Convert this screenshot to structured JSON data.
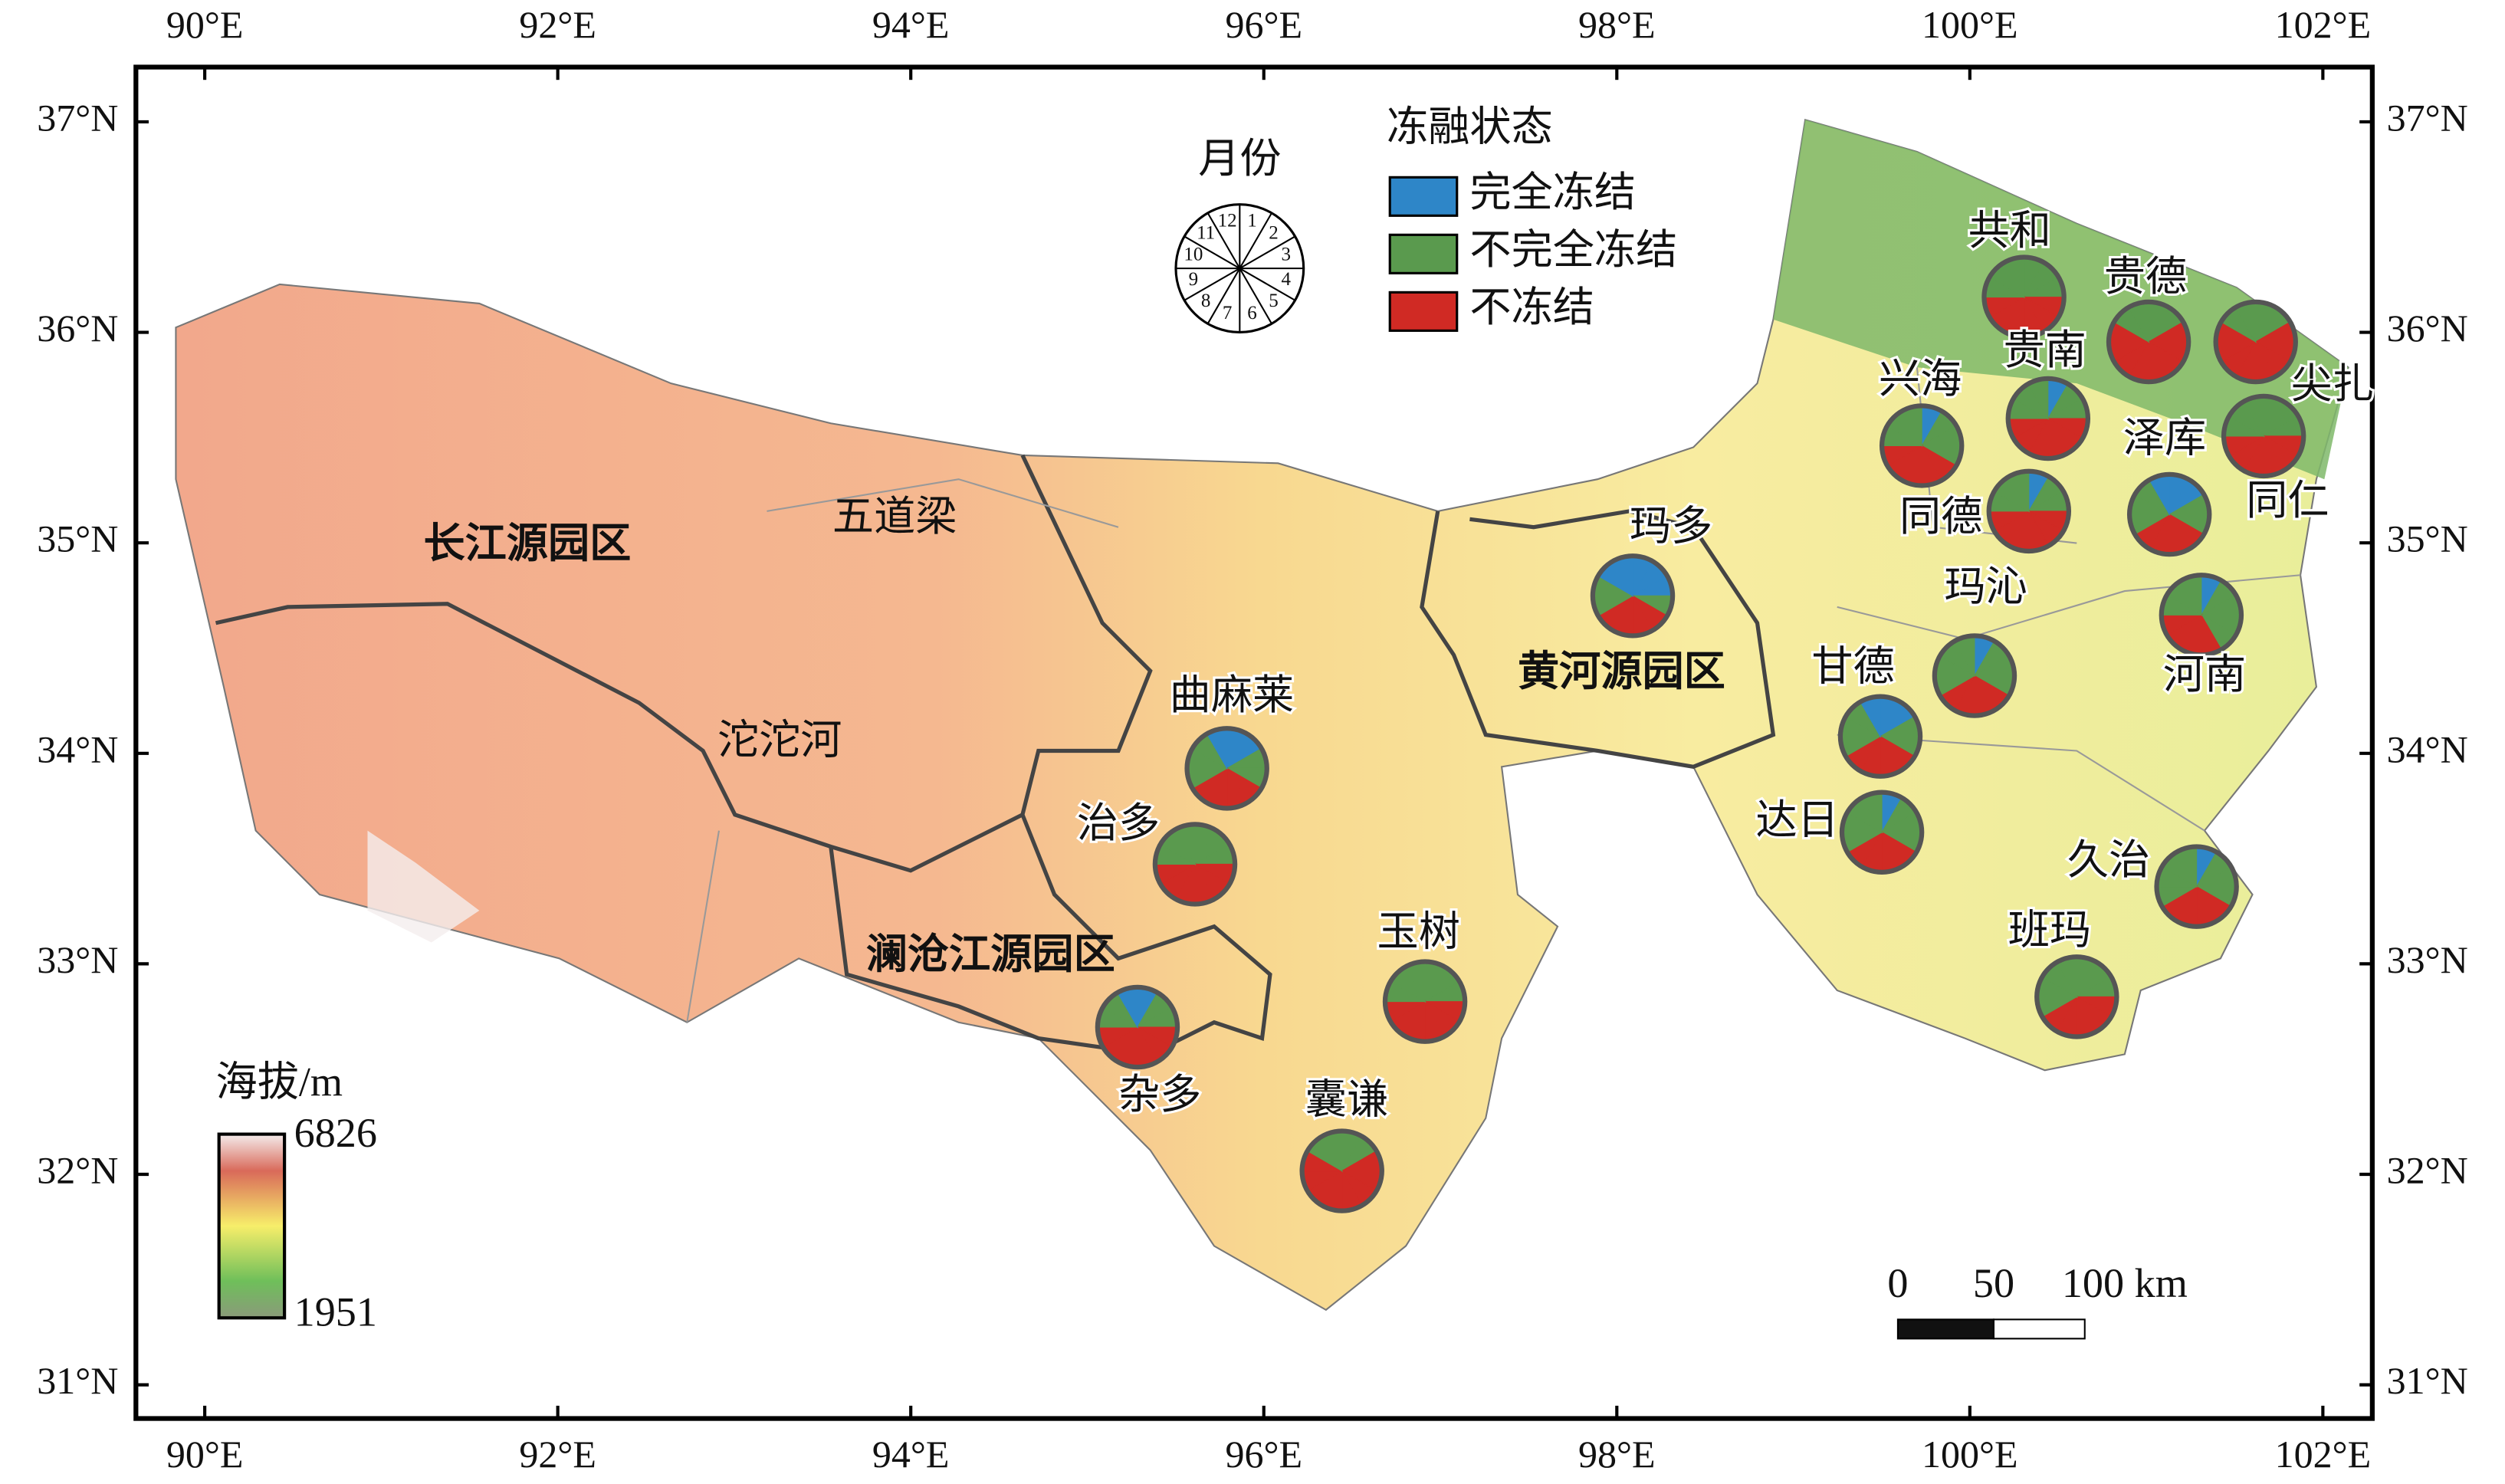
{
  "map": {
    "lon_range": [
      89.61,
      102.28
    ],
    "lat_range": [
      30.84,
      37.26
    ],
    "lon_ticks": [
      {
        "value": 90,
        "label": "90°E"
      },
      {
        "value": 92,
        "label": "92°E"
      },
      {
        "value": 94,
        "label": "94°E"
      },
      {
        "value": 96,
        "label": "96°E"
      },
      {
        "value": 98,
        "label": "98°E"
      },
      {
        "value": 100,
        "label": "100°E"
      },
      {
        "value": 102,
        "label": "102°E"
      }
    ],
    "lat_ticks": [
      {
        "value": 31,
        "label": "31°N"
      },
      {
        "value": 32,
        "label": "32°N"
      },
      {
        "value": 33,
        "label": "33°N"
      },
      {
        "value": 34,
        "label": "34°N"
      },
      {
        "value": 35,
        "label": "35°N"
      },
      {
        "value": 36,
        "label": "36°N"
      },
      {
        "value": 37,
        "label": "37°N"
      }
    ],
    "legend": {
      "title": "冻融状态",
      "items": [
        {
          "label": "完全冻结",
          "color": "#2e86c8"
        },
        {
          "label": "不完全冻结",
          "color": "#5a9a4e"
        },
        {
          "label": "不冻结",
          "color": "#d02a24"
        }
      ]
    },
    "month_dial": {
      "title": "月份",
      "months": [
        1,
        2,
        3,
        4,
        5,
        6,
        7,
        8,
        9,
        10,
        11,
        12
      ]
    },
    "regions": [
      "长江源园区",
      "黄河源园区",
      "澜沧江源园区"
    ],
    "places": [
      "五道梁",
      "沱沱河"
    ],
    "stations": [
      {
        "name": "共和",
        "states": [
          1,
          1,
          1,
          2,
          2,
          2,
          2,
          2,
          2,
          1,
          1,
          1
        ]
      },
      {
        "name": "贵德",
        "states": [
          1,
          1,
          2,
          2,
          2,
          2,
          2,
          2,
          2,
          2,
          1,
          1
        ]
      },
      {
        "name": "尖扎",
        "states": [
          1,
          1,
          2,
          2,
          2,
          2,
          2,
          2,
          2,
          2,
          1,
          1
        ]
      },
      {
        "name": "贵南",
        "states": [
          0,
          1,
          1,
          2,
          2,
          2,
          2,
          2,
          2,
          1,
          1,
          1
        ]
      },
      {
        "name": "兴海",
        "states": [
          0,
          1,
          1,
          1,
          2,
          2,
          2,
          2,
          2,
          1,
          1,
          1
        ]
      },
      {
        "name": "同仁",
        "states": [
          1,
          1,
          1,
          2,
          2,
          2,
          2,
          2,
          2,
          1,
          1,
          1
        ]
      },
      {
        "name": "同德",
        "states": [
          0,
          1,
          1,
          2,
          2,
          2,
          2,
          2,
          2,
          1,
          1,
          1
        ]
      },
      {
        "name": "泽库",
        "states": [
          0,
          0,
          1,
          1,
          2,
          2,
          2,
          2,
          1,
          1,
          1,
          0
        ]
      },
      {
        "name": "玛多",
        "states": [
          0,
          0,
          0,
          1,
          2,
          2,
          2,
          2,
          1,
          1,
          0,
          0
        ]
      },
      {
        "name": "河南",
        "states": [
          0,
          1,
          1,
          1,
          1,
          2,
          2,
          2,
          2,
          1,
          1,
          1
        ]
      },
      {
        "name": "玛沁",
        "states": [
          0,
          1,
          1,
          1,
          2,
          2,
          2,
          2,
          1,
          1,
          1,
          1
        ]
      },
      {
        "name": "甘德",
        "states": [
          0,
          0,
          1,
          1,
          2,
          2,
          2,
          2,
          1,
          1,
          1,
          0
        ]
      },
      {
        "name": "达日",
        "states": [
          0,
          1,
          1,
          1,
          2,
          2,
          2,
          2,
          1,
          1,
          1,
          1
        ]
      },
      {
        "name": "久治",
        "states": [
          0,
          1,
          1,
          1,
          2,
          2,
          2,
          2,
          1,
          1,
          1,
          1
        ]
      },
      {
        "name": "班玛",
        "states": [
          1,
          1,
          1,
          2,
          2,
          2,
          2,
          2,
          1,
          1,
          1,
          1
        ]
      },
      {
        "name": "曲麻莱",
        "states": [
          0,
          0,
          1,
          1,
          2,
          2,
          2,
          2,
          1,
          1,
          1,
          0
        ]
      },
      {
        "name": "治多",
        "states": [
          1,
          1,
          1,
          2,
          2,
          2,
          2,
          2,
          2,
          1,
          1,
          1
        ]
      },
      {
        "name": "杂多",
        "states": [
          0,
          1,
          1,
          2,
          2,
          2,
          2,
          2,
          2,
          1,
          1,
          0
        ]
      },
      {
        "name": "玉树",
        "states": [
          1,
          1,
          1,
          2,
          2,
          2,
          2,
          2,
          2,
          1,
          1,
          1
        ]
      },
      {
        "name": "囊谦",
        "states": [
          1,
          1,
          2,
          2,
          2,
          2,
          2,
          2,
          2,
          2,
          1,
          1
        ]
      }
    ],
    "elevation_legend": {
      "title": "海拔/m",
      "max": 6826,
      "min": 1951
    },
    "scale_bar": {
      "labels": [
        "0",
        "50",
        "100 km"
      ]
    }
  }
}
